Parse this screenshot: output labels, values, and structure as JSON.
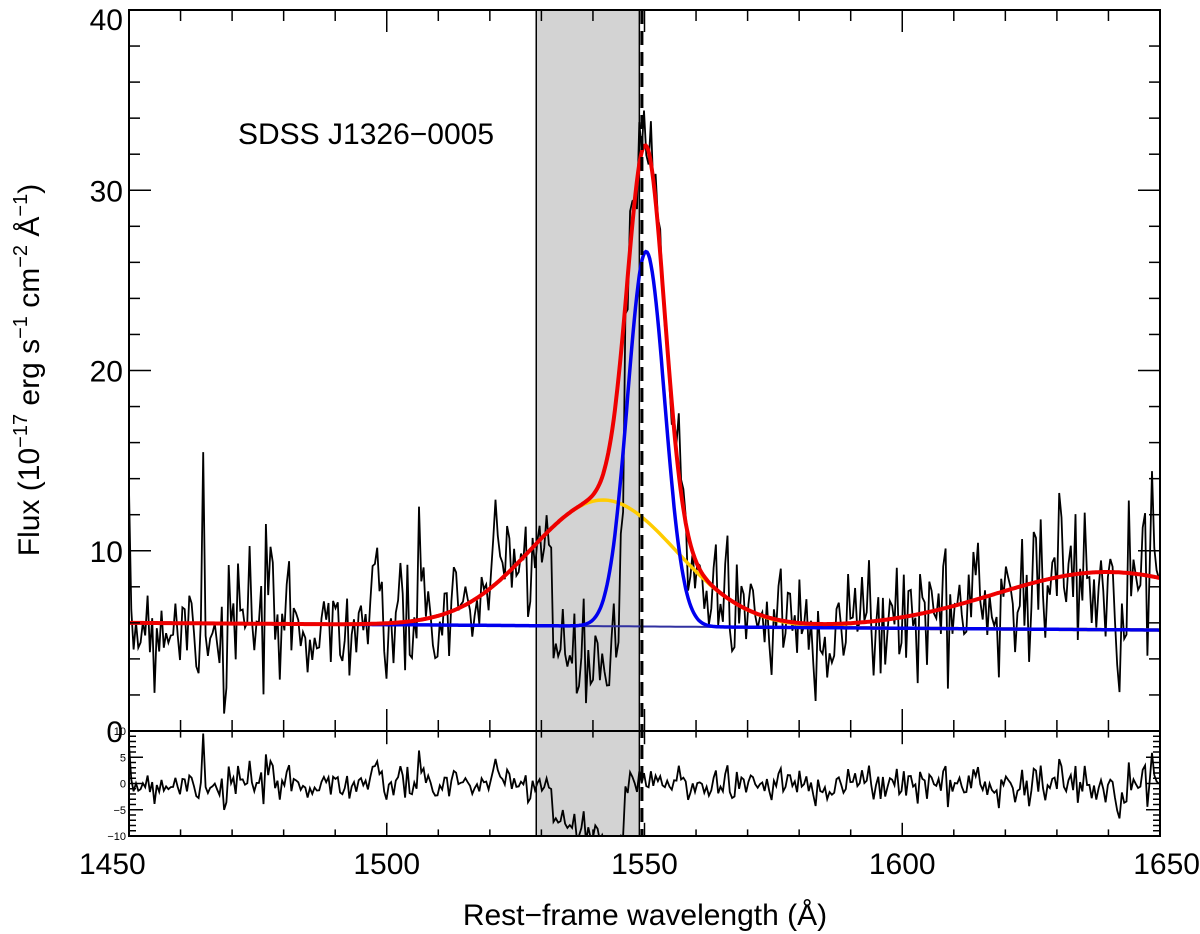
{
  "chart_data": {
    "type": "line",
    "annotation": "SDSS J1326−0005",
    "xlabel": "Rest−frame wavelength (Å)",
    "ylabel": {
      "prefix": "Flux (10",
      "exp1": "−17",
      "mid1": " erg s",
      "exp2": "−1",
      "mid2": " cm",
      "exp3": "−2",
      "mid3": " Å",
      "exp4": "−1",
      "suffix": ")"
    },
    "xlim": [
      1450,
      1650
    ],
    "ylim": [
      0,
      40
    ],
    "residual_ylim": [
      -10,
      10
    ],
    "x_ticks": [
      1450,
      1500,
      1550,
      1600,
      1650
    ],
    "x_tick_labels": [
      "1450",
      "1500",
      "1550",
      "1600",
      "1650"
    ],
    "y_ticks": [
      0,
      10,
      20,
      30,
      40
    ],
    "y_tick_labels": [
      "0",
      "10",
      "20",
      "30",
      "40"
    ],
    "residual_ticks": [
      -10,
      -5,
      0,
      5,
      10
    ],
    "residual_tick_labels": [
      "−10",
      "−5",
      "0",
      "5",
      "10"
    ],
    "masked_region": [
      1529,
      1549
    ],
    "line_center": 1549.5,
    "continuum": {
      "value_at_1450": 6.0,
      "value_at_1650": 5.6
    },
    "components": [
      {
        "name": "broad",
        "color": "#ffcc00",
        "amplitude": 7.0,
        "center": 1542,
        "sigma": 14
      },
      {
        "name": "narrow",
        "color": "#0000ee",
        "amplitude": 20.8,
        "center": 1550.3,
        "sigma": 3.6
      },
      {
        "name": "he-ii-bump",
        "amplitude": 3.2,
        "center": 1640,
        "sigma": 22
      }
    ],
    "series": [
      {
        "name": "observed",
        "color": "#000000",
        "seed": 7,
        "noise_sigma": 1.9
      },
      {
        "name": "total-fit",
        "color": "#ee0000"
      },
      {
        "name": "continuum",
        "color": "#3030a0"
      }
    ]
  }
}
